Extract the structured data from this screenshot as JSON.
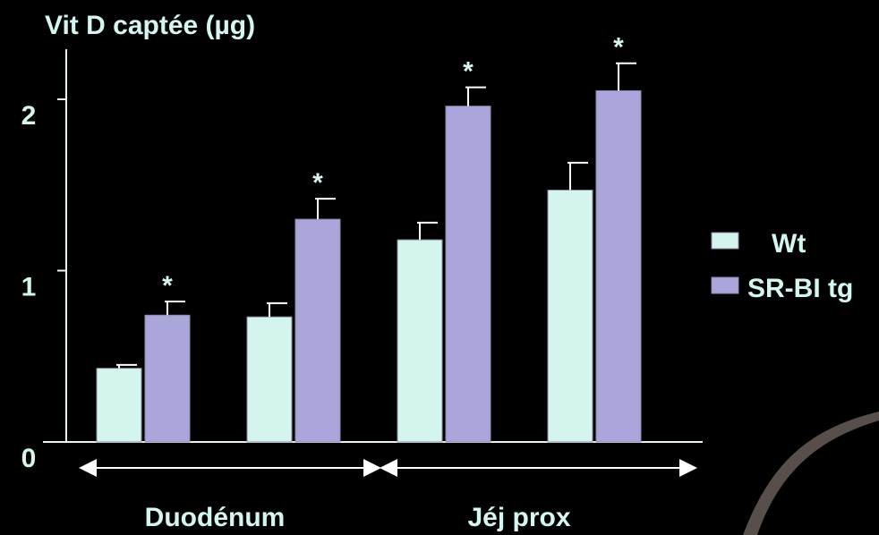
{
  "chart_data": {
    "type": "bar",
    "ylabel": "Vit D captée (µg)",
    "categories": [
      null,
      null,
      null,
      null
    ],
    "group_labels": [
      "Duodénum",
      "Jéj prox"
    ],
    "series": [
      {
        "name": "Wt",
        "color": "#d4f5ee",
        "values": [
          0.43,
          0.73,
          1.18,
          1.47
        ],
        "errors": [
          0.02,
          0.08,
          0.1,
          0.16
        ]
      },
      {
        "name": "SR-BI tg",
        "color": "#aaa6dc",
        "values": [
          0.74,
          1.3,
          1.96,
          2.05
        ],
        "errors": [
          0.08,
          0.12,
          0.11,
          0.16
        ],
        "annotations": [
          "*",
          "*",
          "*",
          "*"
        ]
      }
    ],
    "ylim": [
      0,
      2.3
    ],
    "yticks": [
      0,
      1,
      2
    ],
    "legend": "right"
  }
}
